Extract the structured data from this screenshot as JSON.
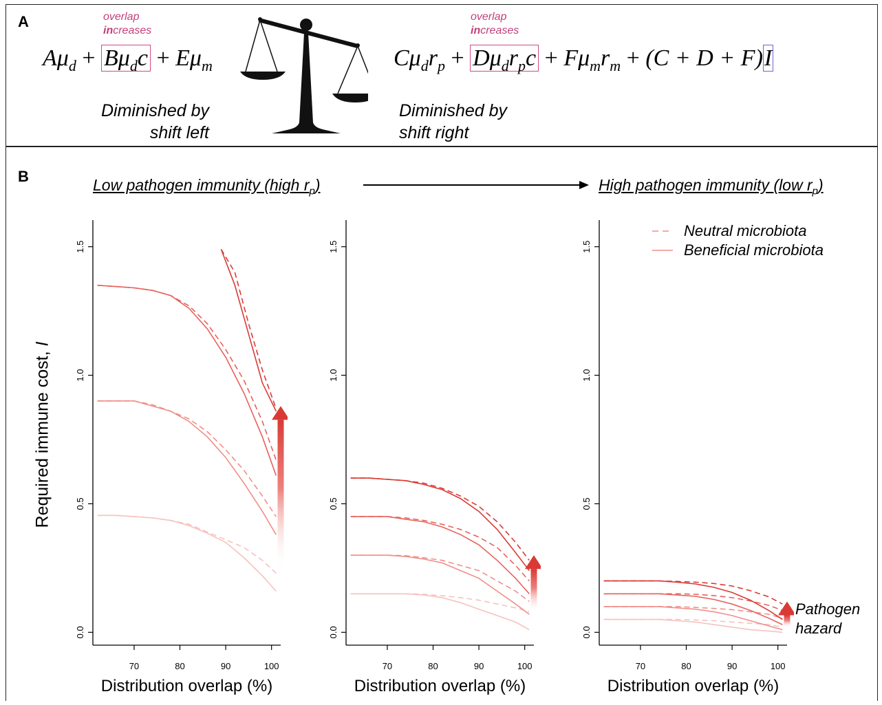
{
  "panel_a": {
    "label": "A",
    "overlap_note_prefix": "overlap",
    "overlap_note_bold": "in",
    "overlap_note_rest": "creases",
    "left_side": {
      "term1": "Aμ",
      "term1_sub": "d",
      "plus1": "+",
      "boxed_term": "Bμ",
      "boxed_term_sub": "d",
      "boxed_term_tail": "c",
      "plus2": "+",
      "term3": "Eμ",
      "term3_sub": "m",
      "caption_line1": "Diminished by",
      "caption_line2": "shift left"
    },
    "right_side": {
      "term1": "Cμ",
      "term1_sub": "d",
      "term1_mid": "r",
      "term1_sub2": "p",
      "plus1": "+",
      "boxed_term": "Dμ",
      "boxed_term_sub": "d",
      "boxed_term_mid": "r",
      "boxed_term_sub2": "p",
      "boxed_term_tail": "c",
      "plus2": "+",
      "term3": "Fμ",
      "term3_sub": "m",
      "term3_mid": "r",
      "term3_sub2": "m",
      "plus3": "+",
      "paren_term": "(C + D + F)",
      "boxed_I": "I",
      "caption_line1": "Diminished by",
      "caption_line2": "shift right"
    },
    "scale_icon": "balance-scale-icon"
  },
  "panel_b": {
    "label": "B",
    "regime_left": "Low pathogen immunity (high r",
    "regime_left_sub": "p",
    "regime_left_close": ")",
    "regime_right": "High pathogen immunity (low r",
    "regime_right_sub": "p",
    "regime_right_close": ")",
    "ylabel_main": "Required immune cost,",
    "ylabel_var": "I",
    "xlabel": "Distribution overlap (%)",
    "legend": {
      "neutral": "Neutral microbiota",
      "beneficial": "Beneficial microbiota"
    },
    "hazard_label_line1": "Pathogen",
    "hazard_label_line2": "hazard",
    "colors": [
      "#f6c2bf",
      "#f08e88",
      "#e8615b",
      "#d93a35"
    ]
  },
  "chart_data": [
    {
      "type": "line",
      "xlabel": "Distribution overlap (%)",
      "ylabel": "Required immune cost, I",
      "xlim": [
        61,
        102
      ],
      "ylim": [
        -0.05,
        1.55
      ],
      "xticks": [
        70,
        80,
        90,
        100
      ],
      "yticks": [
        0.0,
        0.5,
        1.0,
        1.5
      ],
      "grid": false,
      "legend": "none",
      "series": [
        {
          "level": 1,
          "style": "dashed",
          "x": [
            62,
            66,
            70,
            74,
            78,
            82,
            86,
            90,
            94,
            98,
            101
          ],
          "y": [
            0.455,
            0.455,
            0.45,
            0.445,
            0.435,
            0.42,
            0.39,
            0.36,
            0.33,
            0.28,
            0.23
          ]
        },
        {
          "level": 1,
          "style": "solid",
          "x": [
            62,
            66,
            70,
            74,
            78,
            82,
            86,
            90,
            94,
            98,
            101
          ],
          "y": [
            0.455,
            0.455,
            0.45,
            0.445,
            0.435,
            0.415,
            0.385,
            0.35,
            0.29,
            0.22,
            0.16
          ]
        },
        {
          "level": 2,
          "style": "dashed",
          "x": [
            62,
            66,
            70,
            74,
            78,
            82,
            86,
            90,
            94,
            98,
            101
          ],
          "y": [
            0.9,
            0.9,
            0.9,
            0.885,
            0.86,
            0.83,
            0.78,
            0.71,
            0.63,
            0.53,
            0.45
          ]
        },
        {
          "level": 2,
          "style": "solid",
          "x": [
            62,
            66,
            70,
            74,
            78,
            82,
            86,
            90,
            94,
            98,
            101
          ],
          "y": [
            0.9,
            0.9,
            0.9,
            0.88,
            0.86,
            0.82,
            0.76,
            0.68,
            0.58,
            0.47,
            0.38
          ]
        },
        {
          "level": 3,
          "style": "dashed",
          "x": [
            62,
            66,
            70,
            74,
            78,
            82,
            86,
            90,
            94,
            98,
            101
          ],
          "y": [
            1.35,
            1.345,
            1.34,
            1.33,
            1.31,
            1.27,
            1.2,
            1.1,
            0.98,
            0.82,
            0.67
          ]
        },
        {
          "level": 3,
          "style": "solid",
          "x": [
            62,
            66,
            70,
            74,
            78,
            82,
            86,
            90,
            94,
            98,
            101
          ],
          "y": [
            1.35,
            1.345,
            1.34,
            1.33,
            1.31,
            1.26,
            1.18,
            1.07,
            0.93,
            0.76,
            0.61
          ]
        },
        {
          "level": 4,
          "style": "dashed",
          "x": [
            89,
            92,
            95,
            98,
            101
          ],
          "y": [
            1.49,
            1.4,
            1.2,
            1.02,
            0.87
          ]
        },
        {
          "level": 4,
          "style": "solid",
          "x": [
            89,
            92,
            95,
            98,
            101
          ],
          "y": [
            1.49,
            1.35,
            1.16,
            0.97,
            0.86
          ]
        }
      ],
      "arrow": {
        "x": 102,
        "y_from": 0.24,
        "y_to": 0.88
      }
    },
    {
      "type": "line",
      "xlabel": "Distribution overlap (%)",
      "xlim": [
        61,
        102
      ],
      "ylim": [
        -0.05,
        1.55
      ],
      "xticks": [
        70,
        80,
        90,
        100
      ],
      "yticks": [
        0.0,
        0.5,
        1.0,
        1.5
      ],
      "grid": false,
      "legend": "none",
      "series": [
        {
          "level": 1,
          "style": "dashed",
          "x": [
            62,
            66,
            70,
            74,
            78,
            82,
            86,
            90,
            94,
            98,
            101
          ],
          "y": [
            0.15,
            0.15,
            0.15,
            0.15,
            0.148,
            0.142,
            0.135,
            0.125,
            0.11,
            0.095,
            0.08
          ]
        },
        {
          "level": 1,
          "style": "solid",
          "x": [
            62,
            66,
            70,
            74,
            78,
            82,
            86,
            90,
            94,
            98,
            101
          ],
          "y": [
            0.15,
            0.15,
            0.15,
            0.15,
            0.145,
            0.135,
            0.115,
            0.09,
            0.065,
            0.04,
            0.01
          ]
        },
        {
          "level": 2,
          "style": "dashed",
          "x": [
            62,
            66,
            70,
            74,
            78,
            82,
            86,
            90,
            94,
            98,
            101
          ],
          "y": [
            0.3,
            0.3,
            0.3,
            0.298,
            0.29,
            0.28,
            0.26,
            0.24,
            0.2,
            0.16,
            0.12
          ]
        },
        {
          "level": 2,
          "style": "solid",
          "x": [
            62,
            66,
            70,
            74,
            78,
            82,
            86,
            90,
            94,
            98,
            101
          ],
          "y": [
            0.3,
            0.3,
            0.3,
            0.295,
            0.285,
            0.27,
            0.24,
            0.21,
            0.16,
            0.11,
            0.07
          ]
        },
        {
          "level": 3,
          "style": "dashed",
          "x": [
            62,
            66,
            70,
            74,
            78,
            82,
            86,
            90,
            94,
            98,
            101
          ],
          "y": [
            0.45,
            0.45,
            0.45,
            0.445,
            0.435,
            0.42,
            0.4,
            0.37,
            0.33,
            0.26,
            0.2
          ]
        },
        {
          "level": 3,
          "style": "solid",
          "x": [
            62,
            66,
            70,
            74,
            78,
            82,
            86,
            90,
            94,
            98,
            101
          ],
          "y": [
            0.45,
            0.45,
            0.45,
            0.44,
            0.43,
            0.41,
            0.38,
            0.34,
            0.28,
            0.21,
            0.15
          ]
        },
        {
          "level": 4,
          "style": "dashed",
          "x": [
            62,
            66,
            70,
            74,
            78,
            82,
            86,
            90,
            94,
            98,
            101
          ],
          "y": [
            0.6,
            0.6,
            0.595,
            0.59,
            0.58,
            0.56,
            0.53,
            0.49,
            0.43,
            0.35,
            0.28
          ]
        },
        {
          "level": 4,
          "style": "solid",
          "x": [
            62,
            66,
            70,
            74,
            78,
            82,
            86,
            90,
            94,
            98,
            101
          ],
          "y": [
            0.6,
            0.6,
            0.595,
            0.59,
            0.575,
            0.555,
            0.52,
            0.47,
            0.4,
            0.31,
            0.24
          ]
        }
      ],
      "arrow": {
        "x": 102,
        "y_from": 0.08,
        "y_to": 0.3
      }
    },
    {
      "type": "line",
      "xlabel": "Distribution overlap (%)",
      "xlim": [
        61,
        102
      ],
      "ylim": [
        -0.05,
        1.55
      ],
      "xticks": [
        70,
        80,
        90,
        100
      ],
      "yticks": [
        0.0,
        0.5,
        1.0,
        1.5
      ],
      "grid": false,
      "legend": "top-right",
      "series": [
        {
          "level": 1,
          "style": "dashed",
          "x": [
            62,
            66,
            70,
            74,
            78,
            82,
            86,
            90,
            94,
            98,
            101
          ],
          "y": [
            0.05,
            0.05,
            0.05,
            0.05,
            0.05,
            0.048,
            0.045,
            0.04,
            0.035,
            0.03,
            0.02
          ]
        },
        {
          "level": 1,
          "style": "solid",
          "x": [
            62,
            66,
            70,
            74,
            78,
            82,
            86,
            90,
            94,
            98,
            101
          ],
          "y": [
            0.05,
            0.05,
            0.05,
            0.05,
            0.045,
            0.04,
            0.03,
            0.02,
            0.01,
            0.005,
            0.0
          ]
        },
        {
          "level": 2,
          "style": "dashed",
          "x": [
            62,
            66,
            70,
            74,
            78,
            82,
            86,
            90,
            94,
            98,
            101
          ],
          "y": [
            0.1,
            0.1,
            0.1,
            0.1,
            0.1,
            0.097,
            0.093,
            0.088,
            0.08,
            0.07,
            0.055
          ]
        },
        {
          "level": 2,
          "style": "solid",
          "x": [
            62,
            66,
            70,
            74,
            78,
            82,
            86,
            90,
            94,
            98,
            101
          ],
          "y": [
            0.1,
            0.1,
            0.1,
            0.1,
            0.095,
            0.09,
            0.08,
            0.065,
            0.045,
            0.025,
            0.01
          ]
        },
        {
          "level": 3,
          "style": "dashed",
          "x": [
            62,
            66,
            70,
            74,
            78,
            82,
            86,
            90,
            94,
            98,
            101
          ],
          "y": [
            0.15,
            0.15,
            0.15,
            0.15,
            0.15,
            0.148,
            0.143,
            0.135,
            0.122,
            0.105,
            0.085
          ]
        },
        {
          "level": 3,
          "style": "solid",
          "x": [
            62,
            66,
            70,
            74,
            78,
            82,
            86,
            90,
            94,
            98,
            101
          ],
          "y": [
            0.15,
            0.15,
            0.15,
            0.15,
            0.145,
            0.14,
            0.128,
            0.11,
            0.085,
            0.055,
            0.03
          ]
        },
        {
          "level": 4,
          "style": "dashed",
          "x": [
            62,
            66,
            70,
            74,
            78,
            82,
            86,
            90,
            94,
            98,
            101
          ],
          "y": [
            0.2,
            0.2,
            0.2,
            0.2,
            0.198,
            0.195,
            0.19,
            0.18,
            0.162,
            0.138,
            0.11
          ]
        },
        {
          "level": 4,
          "style": "solid",
          "x": [
            62,
            66,
            70,
            74,
            78,
            82,
            86,
            90,
            94,
            98,
            101
          ],
          "y": [
            0.2,
            0.2,
            0.2,
            0.2,
            0.195,
            0.188,
            0.175,
            0.155,
            0.125,
            0.085,
            0.05
          ]
        }
      ],
      "arrow": {
        "x": 102,
        "y_from": 0.02,
        "y_to": 0.12
      }
    }
  ]
}
